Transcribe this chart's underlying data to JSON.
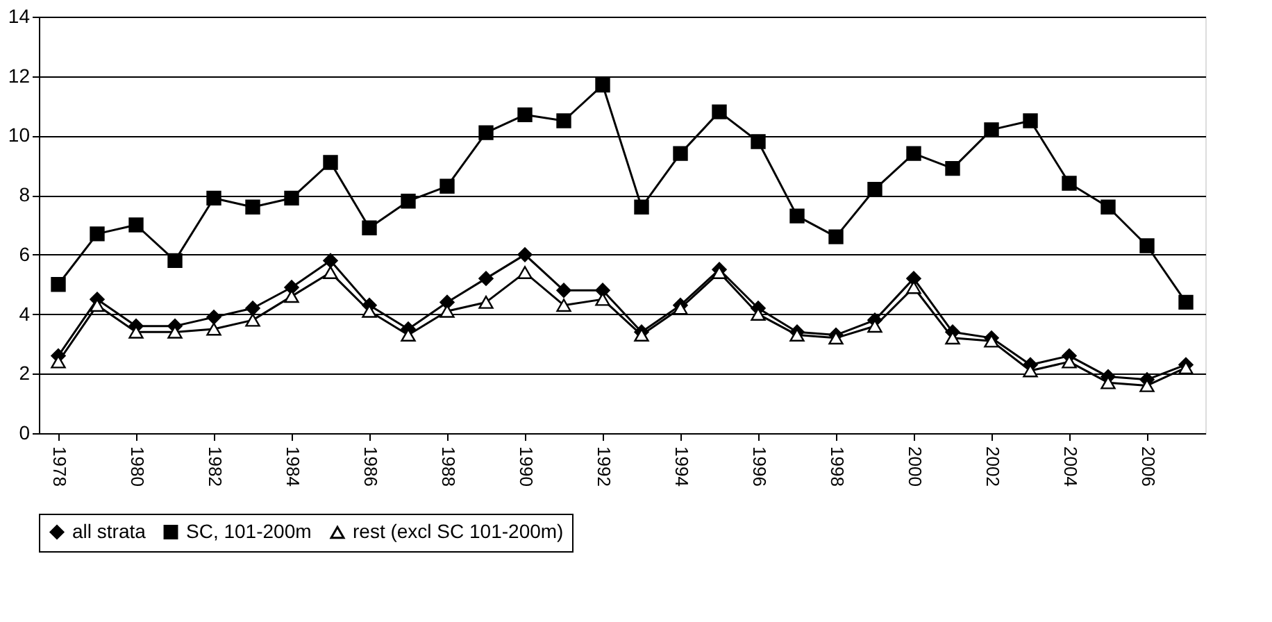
{
  "chart_data": {
    "type": "line",
    "x": [
      1978,
      1979,
      1980,
      1981,
      1982,
      1983,
      1984,
      1985,
      1986,
      1987,
      1988,
      1989,
      1990,
      1991,
      1992,
      1993,
      1994,
      1995,
      1996,
      1997,
      1998,
      1999,
      2000,
      2001,
      2002,
      2003,
      2004,
      2005,
      2006,
      2007
    ],
    "xlim": [
      1977.5,
      2007.5
    ],
    "xticks": [
      1978,
      1980,
      1982,
      1984,
      1986,
      1988,
      1990,
      1992,
      1994,
      1996,
      1998,
      2000,
      2002,
      2004,
      2006
    ],
    "ylim": [
      0,
      14
    ],
    "yticks": [
      0,
      2,
      4,
      6,
      8,
      10,
      12,
      14
    ],
    "grid": "y",
    "legend": "bottom",
    "line_style": "solid",
    "series": [
      {
        "name": "all strata",
        "color": "#000000",
        "marker": "diamond",
        "values": [
          2.6,
          4.5,
          3.6,
          3.6,
          3.9,
          4.2,
          4.9,
          5.8,
          4.3,
          3.5,
          4.4,
          5.2,
          6.0,
          4.8,
          4.8,
          3.4,
          4.3,
          5.5,
          4.2,
          3.4,
          3.3,
          3.8,
          5.2,
          3.4,
          3.2,
          2.3,
          2.6,
          1.9,
          1.8,
          2.3
        ]
      },
      {
        "name": "SC, 101-200m",
        "color": "#000000",
        "marker": "square",
        "values": [
          5.0,
          6.7,
          7.0,
          5.8,
          7.9,
          7.6,
          7.9,
          9.1,
          6.9,
          7.8,
          8.3,
          10.1,
          10.7,
          10.5,
          11.7,
          7.6,
          9.4,
          10.8,
          9.8,
          7.3,
          6.6,
          8.2,
          9.4,
          8.9,
          10.2,
          10.5,
          8.4,
          7.6,
          6.3,
          4.4
        ]
      },
      {
        "name": "rest (excl SC 101-200m)",
        "color": "#000000",
        "marker": "triangle",
        "values": [
          2.4,
          4.3,
          3.4,
          3.4,
          3.5,
          3.8,
          4.6,
          5.4,
          4.1,
          3.3,
          4.1,
          4.4,
          5.4,
          4.3,
          4.5,
          3.3,
          4.2,
          5.4,
          4.0,
          3.3,
          3.2,
          3.6,
          4.9,
          3.2,
          3.1,
          2.1,
          2.4,
          1.7,
          1.6,
          2.2
        ]
      }
    ]
  }
}
